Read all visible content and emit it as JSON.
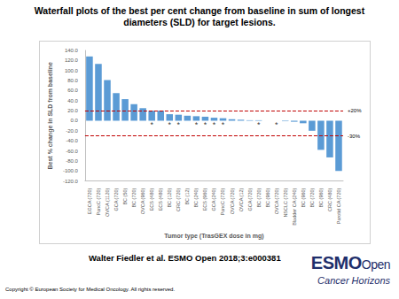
{
  "page": {
    "title": "Waterfall plots of the best per cent change from baseline in sum of longest diameters (SLD) for target lesions.",
    "citation": "Walter Fiedler et al. ESMO Open 2018;3:e000381",
    "copyright": "Copyright © European Society for Medical Oncology. All rights reserved.",
    "logo": {
      "name": "ESMO",
      "sub": "Open",
      "tagline": "Cancer Horizons"
    }
  },
  "chart_data": {
    "type": "bar",
    "x_label": "Tumor type (TrasGEX dose in mg)",
    "y_label": "Best % change in SLD from baseline",
    "categories": [
      "EGCA (720)",
      "PancC (720)",
      "OVCA (1120)",
      "GCA (720)",
      "BC (50)",
      "BC (720)",
      "OVCA (960)",
      "ECS (480)",
      "ECS (480)",
      "BC (120)",
      "CRC (720)",
      "BC (12)",
      "BC (240)",
      "ECS (960)",
      "GCA (240)",
      "PancC (720)",
      "OVCA (720)",
      "OVCA (12)",
      "GCA (720)",
      "BC (720)",
      "BC (960)",
      "OVCA (720)",
      "NSCLC (720)",
      "Bladder CA (240)",
      "BC (960)",
      "BC (720)",
      "BC (960)",
      "CRC (480)",
      "Parotid CA (720)"
    ],
    "values": [
      128,
      113,
      81,
      55,
      43,
      33,
      25,
      20,
      20,
      13,
      12,
      10,
      9,
      8,
      6,
      5,
      3,
      2,
      1,
      1,
      0,
      0,
      -1,
      -2,
      -5,
      -20,
      -58,
      -73,
      -100
    ],
    "color": "#5b9bd5",
    "ylim": [
      -120,
      140
    ],
    "yticks": [
      {
        "value": -120,
        "label": "-120.0"
      },
      {
        "value": -100,
        "label": "-100.0"
      },
      {
        "value": -80,
        "label": "-80.0"
      },
      {
        "value": -60,
        "label": "-60.0"
      },
      {
        "value": -40,
        "label": "-40.0"
      },
      {
        "value": -20,
        "label": "-20.0"
      },
      {
        "value": 0,
        "label": "0.0"
      },
      {
        "value": 20,
        "label": "20.0"
      },
      {
        "value": 40,
        "label": "40.0"
      },
      {
        "value": 60,
        "label": "60.0"
      },
      {
        "value": 80,
        "label": "80.0"
      },
      {
        "value": 100,
        "label": "100.0"
      },
      {
        "value": 120,
        "label": "120.0"
      },
      {
        "value": 140,
        "label": "140.0"
      }
    ],
    "grid": false,
    "reference_lines": [
      {
        "y": 20,
        "label": "+20%",
        "color": "#c00000",
        "line_style": "dashed"
      },
      {
        "y": -30,
        "label": "-30%",
        "color": "#c00000",
        "line_style": "dashed"
      }
    ],
    "annotations": [
      {
        "x": 7,
        "y": -8,
        "text": "*"
      },
      {
        "x": 9,
        "y": -8,
        "text": "*"
      },
      {
        "x": 10,
        "y": -8,
        "text": "*"
      },
      {
        "x": 12,
        "y": -8,
        "text": "*"
      },
      {
        "x": 13,
        "y": -8,
        "text": "*"
      },
      {
        "x": 14,
        "y": -8,
        "text": "*"
      },
      {
        "x": 15,
        "y": -8,
        "text": "*"
      },
      {
        "x": 19,
        "y": -8,
        "text": "*"
      },
      {
        "x": 21,
        "y": -8,
        "text": "*"
      }
    ]
  }
}
